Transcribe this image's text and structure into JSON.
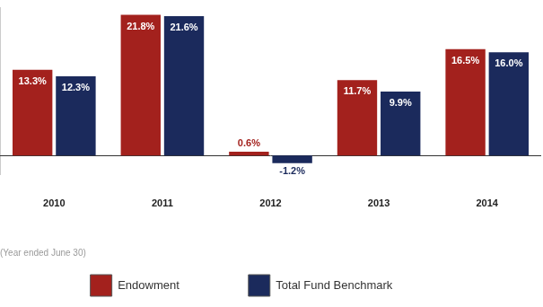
{
  "chart_data": {
    "type": "bar",
    "categories": [
      "2010",
      "2011",
      "2012",
      "2013",
      "2014"
    ],
    "x_label": "(Year ended June 30)",
    "series": [
      {
        "name": "Endowment",
        "color": "#a3211d",
        "values": [
          13.3,
          21.8,
          0.6,
          11.7,
          16.5
        ],
        "value_labels": [
          "13.3%",
          "21.8%",
          "0.6%",
          "11.7%",
          "16.5%"
        ]
      },
      {
        "name": "Total Fund Benchmark",
        "color": "#1b2a5c",
        "values": [
          12.3,
          21.6,
          -1.2,
          9.9,
          16.0
        ],
        "value_labels": [
          "12.3%",
          "21.6%",
          "-1.2%",
          "9.9%",
          "16.0%"
        ]
      }
    ],
    "ylim": [
      -3,
      23
    ],
    "grid": false,
    "legend": "bottom",
    "data_labels": true,
    "tick_labels": "x"
  }
}
